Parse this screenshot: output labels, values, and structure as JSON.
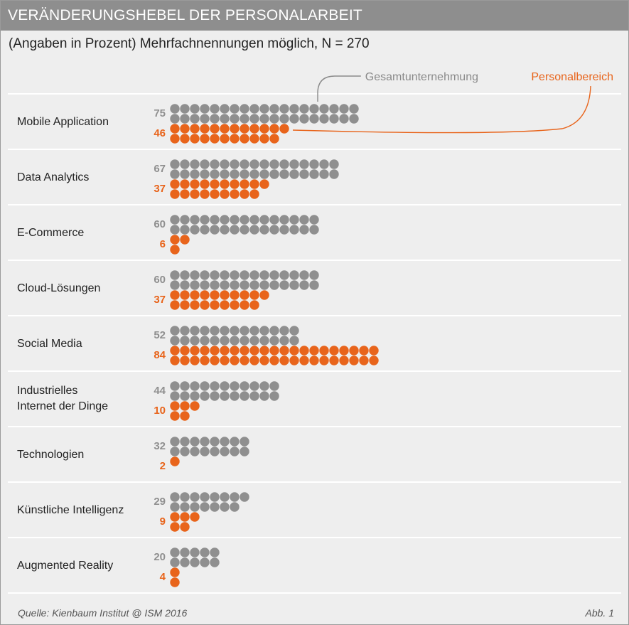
{
  "title": "VERÄNDERUNGSHEBEL DER PERSONALARBEIT",
  "subtitle": "(Angaben in Prozent) Mehrfachnennungen möglich, N = 270",
  "source": "Quelle: Kienbaum Institut @ ISM 2016",
  "figure_label": "Abb. 1",
  "colors": {
    "gesamt": "#8f8f8f",
    "personal": "#e8641b",
    "panel": "#eeeeee",
    "title_bar": "#8e8e8e"
  },
  "chart_data": {
    "type": "bar",
    "title": "VERÄNDERUNGSHEBEL DER PERSONALARBEIT",
    "subtitle": "(Angaben in Prozent) Mehrfachnennungen möglich, N = 270",
    "unit": "Prozent",
    "categories": [
      [
        "Mobile Application"
      ],
      [
        "Data Analytics"
      ],
      [
        "E-Commerce"
      ],
      [
        "Cloud-Lösungen"
      ],
      [
        "Social Media"
      ],
      [
        "Industrielles",
        "Internet der Dinge"
      ],
      [
        "Technologien"
      ],
      [
        "Künstliche Intelligenz"
      ],
      [
        "Augmented Reality"
      ]
    ],
    "series": [
      {
        "name": "Gesamtunternehmung",
        "color": "#8f8f8f",
        "values": [
          75,
          67,
          60,
          60,
          52,
          44,
          32,
          29,
          20
        ]
      },
      {
        "name": "Personalbereich",
        "color": "#e8641b",
        "values": [
          46,
          37,
          6,
          37,
          84,
          10,
          2,
          9,
          4
        ]
      }
    ],
    "grid": false,
    "legend": "top-right"
  }
}
